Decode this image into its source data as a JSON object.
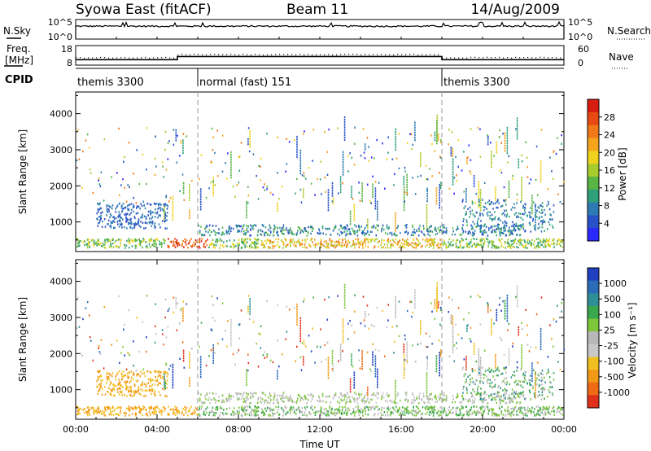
{
  "header": {
    "radar": "Syowa East (fitACF)",
    "beam": "Beam 11",
    "date": "14/Aug/2009"
  },
  "chart_data": [
    {
      "type": "line",
      "panel": "noise",
      "left_label": "N.Sky",
      "right_label": "N.Search",
      "left_ticks": [
        "10^5",
        "10^0"
      ],
      "right_ticks": [
        "10^5",
        "10^0"
      ],
      "scale": "log",
      "approx_level": 3.3,
      "x_range_hours": [
        0,
        24
      ]
    },
    {
      "type": "line",
      "panel": "frequency",
      "left_label_1": "Freq.",
      "left_label_2": "[MHz]",
      "right_label": "Nave",
      "left_ticks": [
        "18",
        "8"
      ],
      "right_ticks": [
        "60",
        "0"
      ],
      "freq_ylim": [
        8,
        18
      ],
      "steps": [
        {
          "start": 0,
          "end": 5,
          "freq_mhz": 10.8
        },
        {
          "start": 5,
          "end": 18,
          "freq_mhz": 12.4
        },
        {
          "start": 18,
          "end": 24,
          "freq_mhz": 10.8
        }
      ]
    },
    {
      "type": "table",
      "panel": "cpid",
      "label": "CPID",
      "segments": [
        {
          "start": 0,
          "end": 6,
          "text": "themis 3300"
        },
        {
          "start": 6,
          "end": 18,
          "text": "normal (fast) 151"
        },
        {
          "start": 18,
          "end": 24,
          "text": "themis 3300"
        }
      ]
    },
    {
      "type": "heatmap",
      "panel": "power",
      "ylabel": "Slant Range [km]",
      "y_ticks": [
        1000,
        2000,
        3000,
        4000
      ],
      "ylim": [
        180,
        4600
      ],
      "colorbar_label": "Power [dB]",
      "colorbar_ticks": [
        "4",
        "8",
        "12",
        "16",
        "20",
        "24",
        "28"
      ],
      "colors": [
        "#2a2aff",
        "#2a52c8",
        "#2e7bb4",
        "#30a07a",
        "#5ab544",
        "#a8cc2c",
        "#eed21c",
        "#f5a41c",
        "#f07818",
        "#e84a14",
        "#d81c10"
      ]
    },
    {
      "type": "heatmap",
      "panel": "velocity",
      "ylabel": "Slant Range [km]",
      "y_ticks": [
        1000,
        2000,
        3000,
        4000
      ],
      "ylim": [
        180,
        4600
      ],
      "colorbar_label": "Velocity [m s⁻¹]",
      "colorbar_ticks": [
        "1000",
        "500",
        "100",
        "25",
        "-25",
        "-100",
        "-500",
        "-1000"
      ],
      "colors": [
        "#1f3fbf",
        "#2a6cb8",
        "#2f8f96",
        "#3aa74e",
        "#7ec63a",
        "#b8b8b8",
        "#c8c8c8",
        "#f0c020",
        "#f29a18",
        "#ee6a14",
        "#e0321a"
      ],
      "xlabel": "Time UT",
      "x_ticks": [
        "00:00",
        "04:00",
        "08:00",
        "12:00",
        "16:00",
        "20:00",
        "00:00"
      ],
      "x_range_hours": [
        0,
        24
      ]
    }
  ]
}
